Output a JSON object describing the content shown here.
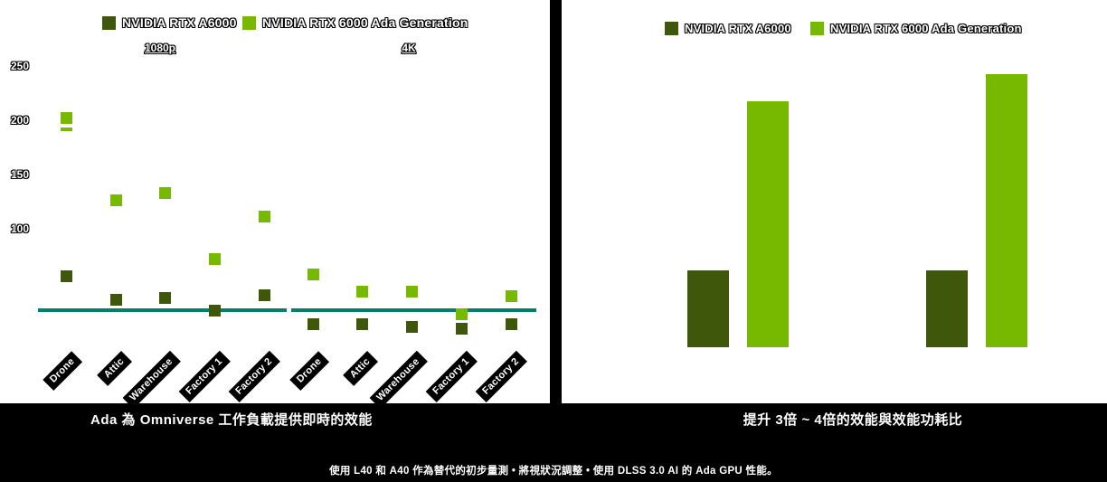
{
  "colors": {
    "series_a6000": "#3e570b",
    "series_ada": "#76b900",
    "reference_line": "#00806b",
    "band_background": "#000000",
    "chart_background": "#ffffff"
  },
  "legend": {
    "items": [
      {
        "label": "NVIDIA RTX A6000",
        "color_key": "series_a6000"
      },
      {
        "label": "NVIDIA RTX 6000 Ada Generation",
        "color_key": "series_ada"
      }
    ]
  },
  "left_chart": {
    "y_tick_labels": [
      "250",
      "200",
      "150",
      "100"
    ],
    "section_labels": [
      "1080p",
      "4K"
    ]
  },
  "titles": {
    "left": "Ada 為 Omniverse 工作負載提供即時的效能",
    "right": "提升 3倍 ~ 4倍的效能與效能功耗比"
  },
  "footnote": "使用 L40 和 A40 作為替代的初步量測 • 將視狀況調整 • 使用 DLSS 3.0 AI 的 Ada GPU 性能。",
  "chart_data": [
    {
      "type": "scatter",
      "title": "Ada 為 Omniverse 工作負載提供即時的效能",
      "ylabel": "",
      "ylim": [
        0,
        260
      ],
      "yticks": [
        100,
        150,
        200,
        250
      ],
      "grid": false,
      "legend_position": "top",
      "panels": [
        {
          "name": "1080p",
          "categories": [
            "Drone",
            "Attic",
            "Warehouse",
            "Factory 1",
            "Factory 2"
          ],
          "series": [
            {
              "name": "NVIDIA RTX A6000",
              "values": [
                56,
                35,
                36,
                25,
                39
              ]
            },
            {
              "name": "NVIDIA RTX 6000 Ada Generation",
              "values": [
                202,
                126,
                133,
                72,
                111
              ]
            }
          ],
          "reference_line": 25,
          "split_marker": {
            "series": 1,
            "index": 0,
            "second_value": 196
          }
        },
        {
          "name": "4K",
          "categories": [
            "Drone",
            "Attic",
            "Warehouse",
            "Factory 1",
            "Factory 2"
          ],
          "series": [
            {
              "name": "NVIDIA RTX A6000",
              "values": [
                12,
                12,
                10,
                8,
                12
              ]
            },
            {
              "name": "NVIDIA RTX 6000 Ada Generation",
              "values": [
                58,
                42,
                42,
                21,
                38
              ]
            }
          ],
          "reference_line": 25
        }
      ]
    },
    {
      "type": "bar",
      "title": "提升 3倍 ~ 4倍的效能與效能功耗比",
      "categories": [
        "",
        ""
      ],
      "series": [
        {
          "name": "NVIDIA RTX A6000",
          "values": [
            1.0,
            1.0
          ]
        },
        {
          "name": "NVIDIA RTX 6000 Ada Generation",
          "values": [
            3.2,
            3.55
          ]
        }
      ],
      "value_basis": "relative to NVIDIA RTX A6000 = 1 (estimated from bar heights)",
      "legend_position": "top",
      "grid": false
    }
  ]
}
